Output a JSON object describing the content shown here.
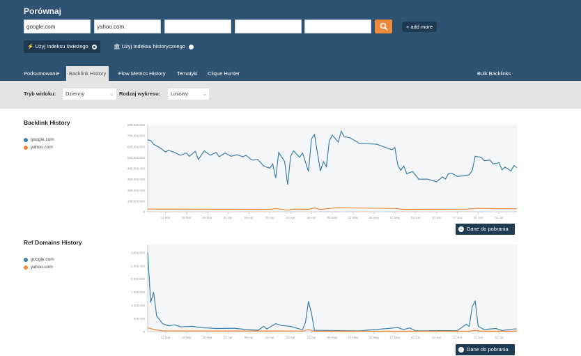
{
  "header": {
    "title": "Porównaj",
    "inputs": [
      "google.com",
      "yahoo.com",
      "",
      "",
      ""
    ],
    "add_more": "+ add more",
    "index_fresh": "Użyj Indeksu świeżego",
    "index_historic": "Użyj Indeksu historycznego"
  },
  "tabs": [
    {
      "label": "Podsumowanie"
    },
    {
      "label": "Backlink History",
      "active": true
    },
    {
      "label": "Flow Metrics History"
    },
    {
      "label": "Tematyki"
    },
    {
      "label": "Clique Hunter"
    },
    {
      "label": "Bulk Backlinks"
    }
  ],
  "toolbar": {
    "view_label": "Tryb widoku:",
    "view_value": "Dzienny",
    "chart_label": "Rodzaj wykresu:",
    "chart_value": "Liniowy"
  },
  "download_label": "Dane do pobrania",
  "colors": {
    "header": "#2d5272",
    "google": "#3a7fa8",
    "yahoo": "#ef8a3c",
    "search": "#ef8a3c"
  },
  "chart_data": [
    {
      "type": "line",
      "title": "Backlink History",
      "ylim": [
        0,
        800000000
      ],
      "yticks": [
        "0",
        "100,000,000",
        "200,000,000",
        "300,000,000",
        "400,000,000",
        "500,000,000",
        "600,000,000",
        "700,000,000",
        "800,000,000"
      ],
      "xticks": [
        "11 Mar",
        "18 Mar",
        "25 Mar",
        "01 Apr",
        "08 Apr",
        "15 Apr",
        "22 Apr",
        "29 Apr",
        "06 May",
        "13 May",
        "20 May",
        "27 May",
        "03 Jun",
        "10 Jun",
        "17 Jun",
        "24 Jun",
        "01 Jul"
      ],
      "series": [
        {
          "name": "google.com",
          "points": [
            [
              "2024-03-05",
              660000000
            ],
            [
              "2024-03-06",
              655000000
            ],
            [
              "2024-03-07",
              620000000
            ],
            [
              "2024-03-09",
              590000000
            ],
            [
              "2024-03-11",
              550000000
            ],
            [
              "2024-03-12",
              565000000
            ],
            [
              "2024-03-14",
              545000000
            ],
            [
              "2024-03-16",
              520000000
            ],
            [
              "2024-03-18",
              540000000
            ],
            [
              "2024-03-19",
              510000000
            ],
            [
              "2024-03-21",
              555000000
            ],
            [
              "2024-03-22",
              480000000
            ],
            [
              "2024-03-24",
              560000000
            ],
            [
              "2024-03-26",
              520000000
            ],
            [
              "2024-03-28",
              545000000
            ],
            [
              "2024-03-29",
              505000000
            ],
            [
              "2024-03-31",
              540000000
            ],
            [
              "2024-04-02",
              510000000
            ],
            [
              "2024-04-04",
              525000000
            ],
            [
              "2024-04-06",
              505000000
            ],
            [
              "2024-04-07",
              520000000
            ],
            [
              "2024-04-09",
              475000000
            ],
            [
              "2024-04-11",
              480000000
            ],
            [
              "2024-04-13",
              420000000
            ],
            [
              "2024-04-15",
              400000000
            ],
            [
              "2024-04-16",
              440000000
            ],
            [
              "2024-04-17",
              310000000
            ],
            [
              "2024-04-18",
              545000000
            ],
            [
              "2024-04-20",
              460000000
            ],
            [
              "2024-04-21",
              250000000
            ],
            [
              "2024-04-22",
              510000000
            ],
            [
              "2024-04-23",
              560000000
            ],
            [
              "2024-04-25",
              500000000
            ],
            [
              "2024-04-26",
              540000000
            ],
            [
              "2024-04-28",
              370000000
            ],
            [
              "2024-04-29",
              670000000
            ],
            [
              "2024-04-30",
              710000000
            ],
            [
              "2024-05-02",
              375000000
            ],
            [
              "2024-05-03",
              460000000
            ],
            [
              "2024-05-04",
              415000000
            ],
            [
              "2024-05-05",
              650000000
            ],
            [
              "2024-05-06",
              705000000
            ],
            [
              "2024-05-08",
              640000000
            ],
            [
              "2024-05-09",
              740000000
            ],
            [
              "2024-05-10",
              690000000
            ],
            [
              "2024-05-12",
              680000000
            ],
            [
              "2024-05-15",
              630000000
            ],
            [
              "2024-05-18",
              625000000
            ],
            [
              "2024-05-21",
              620000000
            ],
            [
              "2024-05-23",
              600000000
            ],
            [
              "2024-05-26",
              570000000
            ],
            [
              "2024-05-27",
              590000000
            ],
            [
              "2024-05-28",
              430000000
            ],
            [
              "2024-05-29",
              380000000
            ],
            [
              "2024-05-30",
              420000000
            ],
            [
              "2024-05-31",
              350000000
            ],
            [
              "2024-06-02",
              370000000
            ],
            [
              "2024-06-04",
              300000000
            ],
            [
              "2024-06-07",
              300000000
            ],
            [
              "2024-06-09",
              285000000
            ],
            [
              "2024-06-10",
              275000000
            ],
            [
              "2024-06-12",
              320000000
            ],
            [
              "2024-06-13",
              300000000
            ],
            [
              "2024-06-14",
              350000000
            ],
            [
              "2024-06-15",
              355000000
            ],
            [
              "2024-06-17",
              325000000
            ],
            [
              "2024-06-19",
              330000000
            ],
            [
              "2024-06-21",
              340000000
            ],
            [
              "2024-06-22",
              380000000
            ],
            [
              "2024-06-23",
              510000000
            ],
            [
              "2024-06-25",
              500000000
            ],
            [
              "2024-06-26",
              470000000
            ],
            [
              "2024-06-28",
              475000000
            ],
            [
              "2024-06-29",
              440000000
            ],
            [
              "2024-07-01",
              450000000
            ],
            [
              "2024-07-02",
              385000000
            ],
            [
              "2024-07-03",
              410000000
            ],
            [
              "2024-07-05",
              375000000
            ],
            [
              "2024-07-06",
              425000000
            ],
            [
              "2024-07-07",
              405000000
            ]
          ]
        },
        {
          "name": "yahoo.com",
          "points": [
            [
              "2024-03-05",
              25000000
            ],
            [
              "2024-04-15",
              22000000
            ],
            [
              "2024-04-17",
              30000000
            ],
            [
              "2024-04-21",
              15000000
            ],
            [
              "2024-04-23",
              25000000
            ],
            [
              "2024-04-28",
              22000000
            ],
            [
              "2024-04-30",
              35000000
            ],
            [
              "2024-05-02",
              22000000
            ],
            [
              "2024-05-05",
              30000000
            ],
            [
              "2024-05-08",
              38000000
            ],
            [
              "2024-05-27",
              30000000
            ],
            [
              "2024-05-30",
              22000000
            ],
            [
              "2024-06-20",
              24000000
            ],
            [
              "2024-06-24",
              32000000
            ],
            [
              "2024-06-30",
              28000000
            ],
            [
              "2024-07-07",
              28000000
            ]
          ]
        }
      ]
    },
    {
      "type": "line",
      "title": "Ref Domains History",
      "ylim": [
        0,
        3300000
      ],
      "yticks": [
        "0",
        "500,000",
        "1,000,000",
        "1,500,000",
        "2,000,000",
        "2,500,000",
        "3,000,000"
      ],
      "xticks": [
        "11 Mar",
        "18 Mar",
        "25 Mar",
        "01 Apr",
        "08 Apr",
        "15 Apr",
        "22 Apr",
        "29 Apr",
        "06 May",
        "13 May",
        "20 May",
        "27 May",
        "03 Jun",
        "10 Jun",
        "17 Jun",
        "24 Jun",
        "01 Jul"
      ],
      "series": [
        {
          "name": "google.com",
          "points": [
            [
              "2024-03-05",
              3000000
            ],
            [
              "2024-03-06",
              1100000
            ],
            [
              "2024-03-07",
              1500000
            ],
            [
              "2024-03-08",
              600000
            ],
            [
              "2024-03-10",
              300000
            ],
            [
              "2024-03-12",
              220000
            ],
            [
              "2024-03-14",
              260000
            ],
            [
              "2024-03-16",
              180000
            ],
            [
              "2024-03-20",
              200000
            ],
            [
              "2024-03-23",
              150000
            ],
            [
              "2024-03-28",
              120000
            ],
            [
              "2024-04-03",
              130000
            ],
            [
              "2024-04-07",
              80000
            ],
            [
              "2024-04-11",
              50000
            ],
            [
              "2024-04-13",
              200000
            ],
            [
              "2024-04-14",
              100000
            ],
            [
              "2024-04-17",
              300000
            ],
            [
              "2024-04-19",
              230000
            ],
            [
              "2024-04-22",
              200000
            ],
            [
              "2024-04-25",
              100000
            ],
            [
              "2024-04-26",
              80000
            ],
            [
              "2024-04-27",
              350000
            ],
            [
              "2024-04-28",
              1150000
            ],
            [
              "2024-04-29",
              700000
            ],
            [
              "2024-04-30",
              50000
            ],
            [
              "2024-05-15",
              30000
            ],
            [
              "2024-05-28",
              150000
            ],
            [
              "2024-05-30",
              80000
            ],
            [
              "2024-06-01",
              140000
            ],
            [
              "2024-06-03",
              30000
            ],
            [
              "2024-06-17",
              40000
            ],
            [
              "2024-06-20",
              280000
            ],
            [
              "2024-06-21",
              200000
            ],
            [
              "2024-06-22",
              950000
            ],
            [
              "2024-06-23",
              1150000
            ],
            [
              "2024-06-24",
              200000
            ],
            [
              "2024-06-26",
              80000
            ],
            [
              "2024-06-30",
              120000
            ],
            [
              "2024-07-02",
              40000
            ],
            [
              "2024-07-06",
              100000
            ],
            [
              "2024-07-07",
              100000
            ]
          ]
        },
        {
          "name": "yahoo.com",
          "points": [
            [
              "2024-03-05",
              150000
            ],
            [
              "2024-03-07",
              80000
            ],
            [
              "2024-03-10",
              30000
            ],
            [
              "2024-04-26",
              20000
            ],
            [
              "2024-04-28",
              80000
            ],
            [
              "2024-04-30",
              15000
            ],
            [
              "2024-06-21",
              15000
            ],
            [
              "2024-06-23",
              50000
            ],
            [
              "2024-06-25",
              15000
            ],
            [
              "2024-07-07",
              15000
            ]
          ]
        }
      ]
    }
  ]
}
